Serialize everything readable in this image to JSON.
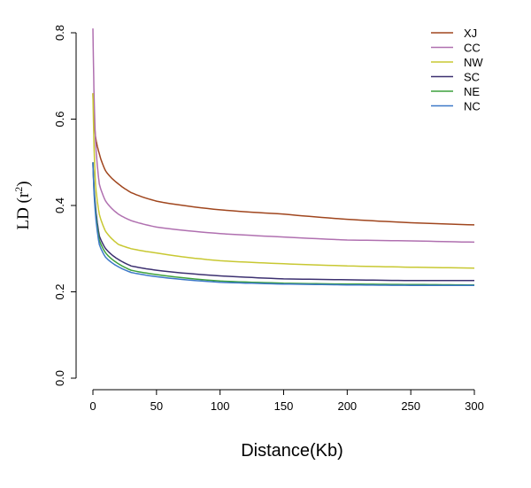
{
  "chart_data": {
    "type": "line",
    "title": "",
    "xlabel": "Distance(Kb)",
    "ylabel": "LD (r²)",
    "ylabel_main": "LD (r",
    "ylabel_sup": "2",
    "ylabel_end": ")",
    "xlim": [
      0,
      300
    ],
    "ylim": [
      0,
      0.8
    ],
    "xticks": [
      "0",
      "50",
      "100",
      "150",
      "200",
      "250",
      "300"
    ],
    "yticks": [
      "0.0",
      "0.2",
      "0.4",
      "0.6",
      "0.8"
    ],
    "grid": false,
    "legend": "top-right",
    "x": [
      0,
      2,
      5,
      10,
      20,
      30,
      50,
      100,
      150,
      200,
      250,
      300
    ],
    "series": [
      {
        "name": "XJ",
        "color": "#a0461e",
        "values": [
          0.66,
          0.56,
          0.52,
          0.48,
          0.45,
          0.43,
          0.41,
          0.39,
          0.38,
          0.368,
          0.36,
          0.355
        ]
      },
      {
        "name": "CC",
        "color": "#b070b0",
        "values": [
          0.81,
          0.55,
          0.45,
          0.41,
          0.38,
          0.365,
          0.35,
          0.335,
          0.327,
          0.32,
          0.318,
          0.315
        ]
      },
      {
        "name": "NW",
        "color": "#c8c832",
        "values": [
          0.66,
          0.45,
          0.38,
          0.34,
          0.31,
          0.3,
          0.29,
          0.272,
          0.265,
          0.26,
          0.257,
          0.255
        ]
      },
      {
        "name": "SC",
        "color": "#3c3070",
        "values": [
          0.5,
          0.4,
          0.33,
          0.3,
          0.275,
          0.26,
          0.25,
          0.237,
          0.23,
          0.228,
          0.226,
          0.226
        ]
      },
      {
        "name": "NE",
        "color": "#3ca03c",
        "values": [
          0.5,
          0.39,
          0.32,
          0.29,
          0.265,
          0.25,
          0.24,
          0.225,
          0.22,
          0.218,
          0.217,
          0.216
        ]
      },
      {
        "name": "NC",
        "color": "#3c78c8",
        "values": [
          0.5,
          0.38,
          0.31,
          0.28,
          0.258,
          0.245,
          0.235,
          0.222,
          0.218,
          0.216,
          0.215,
          0.215
        ]
      }
    ]
  }
}
